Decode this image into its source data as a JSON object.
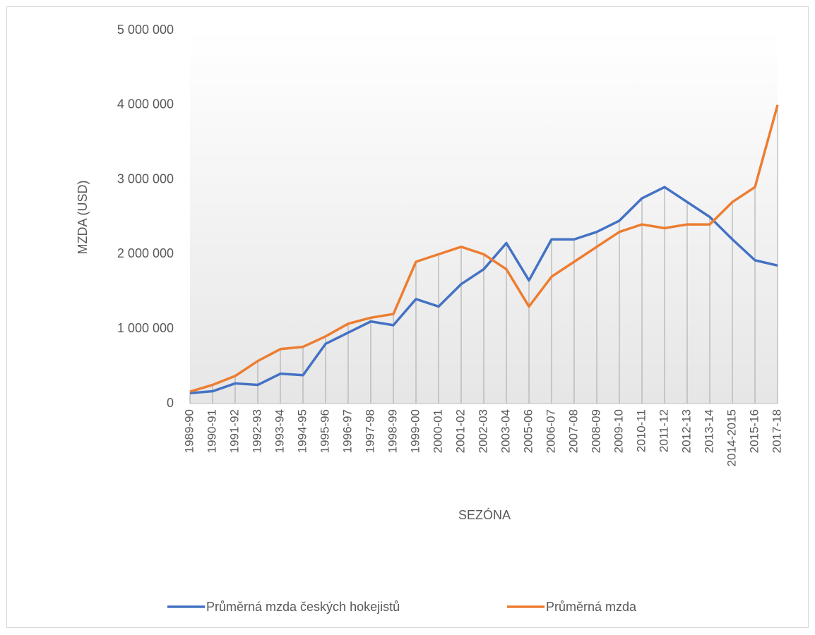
{
  "chart_data": {
    "type": "line",
    "x_label": "SEZÓNA",
    "y_label": "MZDA (USD)",
    "categories": [
      "1989-90",
      "1990-91",
      "1991-92",
      "1992-93",
      "1993-94",
      "1994-95",
      "1995-96",
      "1996-97",
      "1997-98",
      "1998-99",
      "1999-00",
      "2000-01",
      "2001-02",
      "2002-03",
      "2003-04",
      "2005-06",
      "2006-07",
      "2007-08",
      "2008-09",
      "2009-10",
      "2010-11",
      "2011-12",
      "2012-13",
      "2013-14",
      "2014-2015",
      "2015-16",
      "2017-18"
    ],
    "series": [
      {
        "name": "Průměrná mzda českých hokejistů",
        "color": "#4472c4",
        "values": [
          140000,
          165000,
          270000,
          250000,
          400000,
          380000,
          800000,
          950000,
          1100000,
          1050000,
          1400000,
          1300000,
          1600000,
          1800000,
          2150000,
          1650000,
          2200000,
          2200000,
          2300000,
          2450000,
          2750000,
          2900000,
          2700000,
          2500000,
          2200000,
          1920000,
          1850000
        ]
      },
      {
        "name": "Průměrná mzda",
        "color": "#ed7d31",
        "values": [
          160000,
          250000,
          370000,
          570000,
          730000,
          760000,
          900000,
          1070000,
          1150000,
          1200000,
          1900000,
          2000000,
          2100000,
          2000000,
          1800000,
          1300000,
          1700000,
          1900000,
          2100000,
          2300000,
          2400000,
          2350000,
          2400000,
          2400000,
          2700000,
          2900000,
          4000000
        ]
      }
    ],
    "ylim": [
      0,
      5000000
    ],
    "yticks": [
      0,
      {
        "value": 1000000,
        "label": "1 000 000"
      },
      {
        "value": 2000000,
        "label": "2 000 000"
      },
      {
        "value": 3000000,
        "label": "3 000 000"
      },
      {
        "value": 4000000,
        "label": "4 000 000"
      },
      {
        "value": 5000000,
        "label": "5 000 000"
      }
    ],
    "drop_lines": true,
    "legend": "bottom"
  }
}
